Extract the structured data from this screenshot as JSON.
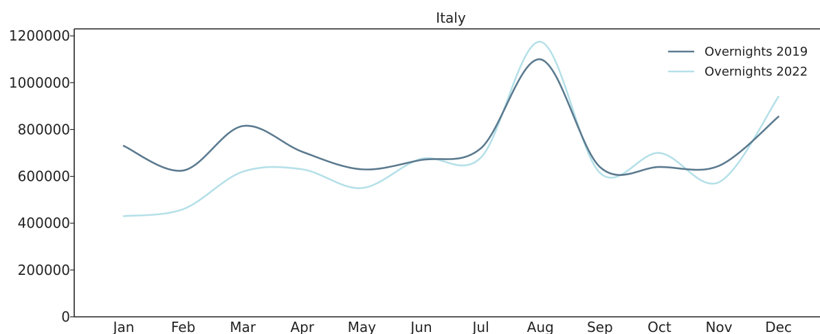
{
  "chart_data": {
    "type": "line",
    "title": "Italy",
    "xlabel": "",
    "ylabel": "",
    "categories": [
      "Jan",
      "Feb",
      "Mar",
      "Apr",
      "May",
      "Jun",
      "Jul",
      "Aug",
      "Sep",
      "Oct",
      "Nov",
      "Dec"
    ],
    "y_ticks": [
      "0",
      "200000",
      "400000",
      "600000",
      "800000",
      "1000000",
      "1200000"
    ],
    "ylim": [
      0,
      1230000
    ],
    "smooth": true,
    "grid": false,
    "legend_position": "top-right",
    "series": [
      {
        "name": "Overnights 2019",
        "color": "#5b7a8f",
        "values": [
          730000,
          625000,
          815000,
          705000,
          630000,
          670000,
          720000,
          1100000,
          640000,
          640000,
          645000,
          855000
        ]
      },
      {
        "name": "Overnights 2022",
        "color": "#b5e0e8",
        "values": [
          430000,
          460000,
          620000,
          630000,
          550000,
          675000,
          680000,
          1175000,
          615000,
          700000,
          575000,
          940000
        ]
      }
    ]
  }
}
